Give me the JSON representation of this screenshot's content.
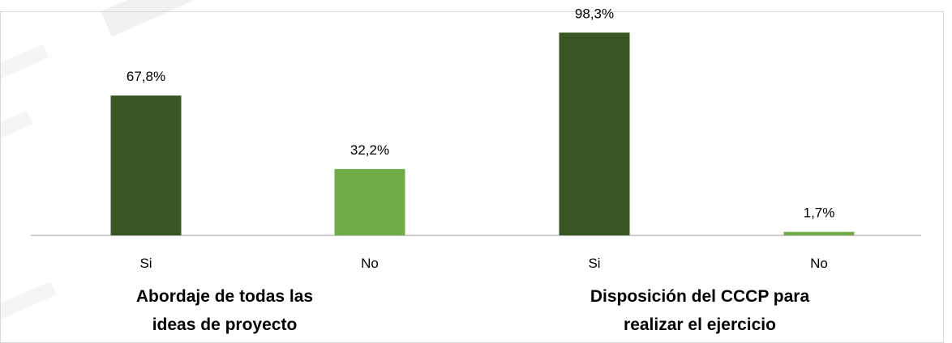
{
  "chart_data": {
    "type": "bar",
    "ylim": [
      0,
      100
    ],
    "grid": false,
    "groups": [
      {
        "label": "Abordaje de todas las ideas de proyecto",
        "label_lines": [
          "Abordaje de todas las",
          "ideas de proyecto"
        ],
        "categories": [
          "Si",
          "No"
        ],
        "values": [
          67.8,
          32.2
        ],
        "value_labels": [
          "67,8%",
          "32,2%"
        ]
      },
      {
        "label": "Disposición del CCCP para realizar el ejercicio",
        "label_lines": [
          "Disposición del CCCP para",
          "realizar el ejercicio"
        ],
        "categories": [
          "Si",
          "No"
        ],
        "values": [
          98.3,
          1.7
        ],
        "value_labels": [
          "98,3%",
          "1,7%"
        ]
      }
    ],
    "colors": {
      "Si": "#375623",
      "No": "#70AD47",
      "axis": "#bfbfbf"
    }
  }
}
